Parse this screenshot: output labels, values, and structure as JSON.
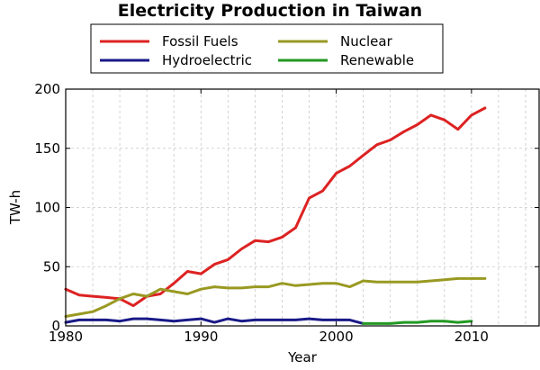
{
  "chart_data": {
    "type": "line",
    "title": "Electricity Production in Taiwan",
    "xlabel": "Year",
    "ylabel": "TW-h",
    "xlim": [
      1980,
      2015
    ],
    "ylim": [
      0,
      200
    ],
    "xticks": [
      1980,
      1990,
      2000,
      2010
    ],
    "yticks": [
      0,
      50,
      100,
      150,
      200
    ],
    "grid": true,
    "legend_position": "top",
    "series": [
      {
        "name": "Fossil Fuels",
        "color": "#dd2222",
        "x": [
          1980,
          1981,
          1982,
          1983,
          1984,
          1985,
          1986,
          1987,
          1988,
          1989,
          1990,
          1991,
          1992,
          1993,
          1994,
          1995,
          1996,
          1997,
          1998,
          1999,
          2000,
          2001,
          2002,
          2003,
          2004,
          2005,
          2006,
          2007,
          2008,
          2009,
          2010,
          2011
        ],
        "values": [
          31,
          26,
          25,
          24,
          23,
          17,
          25,
          27,
          36,
          46,
          44,
          52,
          56,
          65,
          72,
          71,
          75,
          83,
          108,
          114,
          129,
          135,
          144,
          153,
          157,
          164,
          170,
          178,
          174,
          166,
          178,
          184
        ]
      },
      {
        "name": "Nuclear",
        "color": "#999922",
        "x": [
          1980,
          1981,
          1982,
          1983,
          1984,
          1985,
          1986,
          1987,
          1988,
          1989,
          1990,
          1991,
          1992,
          1993,
          1994,
          1995,
          1996,
          1997,
          1998,
          1999,
          2000,
          2001,
          2002,
          2003,
          2004,
          2005,
          2006,
          2007,
          2008,
          2009,
          2010,
          2011
        ],
        "values": [
          8,
          10,
          12,
          17,
          23,
          27,
          25,
          31,
          29,
          27,
          31,
          33,
          32,
          32,
          33,
          33,
          36,
          34,
          35,
          36,
          36,
          33,
          38,
          37,
          37,
          37,
          37,
          38,
          39,
          40,
          40,
          40
        ]
      },
      {
        "name": "Hydroelectric",
        "color": "#1a1a88",
        "x": [
          1980,
          1981,
          1982,
          1983,
          1984,
          1985,
          1986,
          1987,
          1988,
          1989,
          1990,
          1991,
          1992,
          1993,
          1994,
          1995,
          1996,
          1997,
          1998,
          1999,
          2000,
          2001,
          2002
        ],
        "values": [
          3,
          5,
          5,
          5,
          4,
          6,
          6,
          5,
          4,
          5,
          6,
          3,
          6,
          4,
          5,
          5,
          5,
          5,
          6,
          5,
          5,
          5,
          2
        ]
      },
      {
        "name": "Renewable",
        "color": "#229922",
        "x": [
          2002,
          2003,
          2004,
          2005,
          2006,
          2007,
          2008,
          2009,
          2010
        ],
        "values": [
          2,
          2,
          2,
          3,
          3,
          4,
          4,
          3,
          4
        ]
      }
    ]
  }
}
